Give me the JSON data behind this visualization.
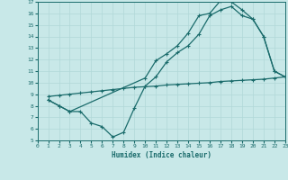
{
  "xlabel": "Humidex (Indice chaleur)",
  "xlim": [
    0,
    23
  ],
  "ylim": [
    5,
    17
  ],
  "xticks": [
    0,
    1,
    2,
    3,
    4,
    5,
    6,
    7,
    8,
    9,
    10,
    11,
    12,
    13,
    14,
    15,
    16,
    17,
    18,
    19,
    20,
    21,
    22,
    23
  ],
  "yticks": [
    5,
    6,
    7,
    8,
    9,
    10,
    11,
    12,
    13,
    14,
    15,
    16,
    17
  ],
  "bg_color": "#c8e8e8",
  "line_color": "#1a6b6b",
  "grid_color": "#b0d8d8",
  "line1_x": [
    1,
    2,
    3,
    10,
    11,
    12,
    13,
    14,
    15,
    16,
    17,
    18,
    19,
    20,
    21,
    22,
    23
  ],
  "line1_y": [
    8.5,
    8.0,
    7.5,
    10.4,
    11.9,
    12.5,
    13.2,
    14.3,
    15.8,
    16.0,
    17.1,
    17.0,
    16.3,
    15.5,
    14.0,
    11.0,
    10.5
  ],
  "line2_x": [
    1,
    2,
    3,
    4,
    5,
    6,
    7,
    8,
    9,
    10,
    11,
    12,
    13,
    14,
    15,
    16,
    17,
    18,
    19,
    20,
    21,
    22,
    23
  ],
  "line2_y": [
    8.8,
    8.9,
    9.0,
    9.1,
    9.2,
    9.3,
    9.4,
    9.5,
    9.6,
    9.65,
    9.7,
    9.8,
    9.85,
    9.9,
    9.95,
    10.0,
    10.1,
    10.15,
    10.2,
    10.25,
    10.3,
    10.4,
    10.5
  ],
  "line3_x": [
    1,
    2,
    3,
    4,
    5,
    6,
    7,
    8,
    9,
    10,
    11,
    12,
    13,
    14,
    15,
    16,
    17,
    18,
    19,
    20,
    21,
    22,
    23
  ],
  "line3_y": [
    8.5,
    8.0,
    7.5,
    7.5,
    6.5,
    6.2,
    5.3,
    5.7,
    7.8,
    9.7,
    10.5,
    11.8,
    12.6,
    13.2,
    14.2,
    15.8,
    16.3,
    16.6,
    15.8,
    15.5,
    14.0,
    11.0,
    10.5
  ]
}
